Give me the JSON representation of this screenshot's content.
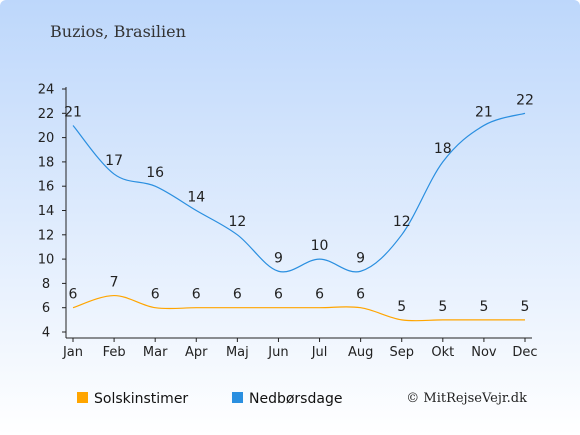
{
  "subtitle": "Buzios, Brasilien",
  "copyright": "© MitRejseVejr.dk",
  "colors": {
    "sun": "#FFA500",
    "rain": "#2A8FE0",
    "bg_top": "#BDD7FB",
    "bg_bottom": "#FFFFFF"
  },
  "chart_data": {
    "type": "line",
    "categories": [
      "Jan",
      "Feb",
      "Mar",
      "Apr",
      "Maj",
      "Jun",
      "Jul",
      "Aug",
      "Sep",
      "Okt",
      "Nov",
      "Dec"
    ],
    "ylim": [
      4,
      24
    ],
    "yticks": [
      4,
      6,
      8,
      10,
      12,
      14,
      16,
      18,
      20,
      22,
      24
    ],
    "grid": false,
    "legend_position": "bottom-left",
    "series": [
      {
        "name": "Solskinstimer",
        "color": "#FFA500",
        "values": [
          6,
          7,
          6,
          6,
          6,
          6,
          6,
          6,
          5,
          5,
          5,
          5
        ]
      },
      {
        "name": "Nedbørsdage",
        "color": "#2A8FE0",
        "values": [
          21,
          17,
          16,
          14,
          12,
          9,
          10,
          9,
          12,
          18,
          21,
          22
        ]
      }
    ]
  }
}
